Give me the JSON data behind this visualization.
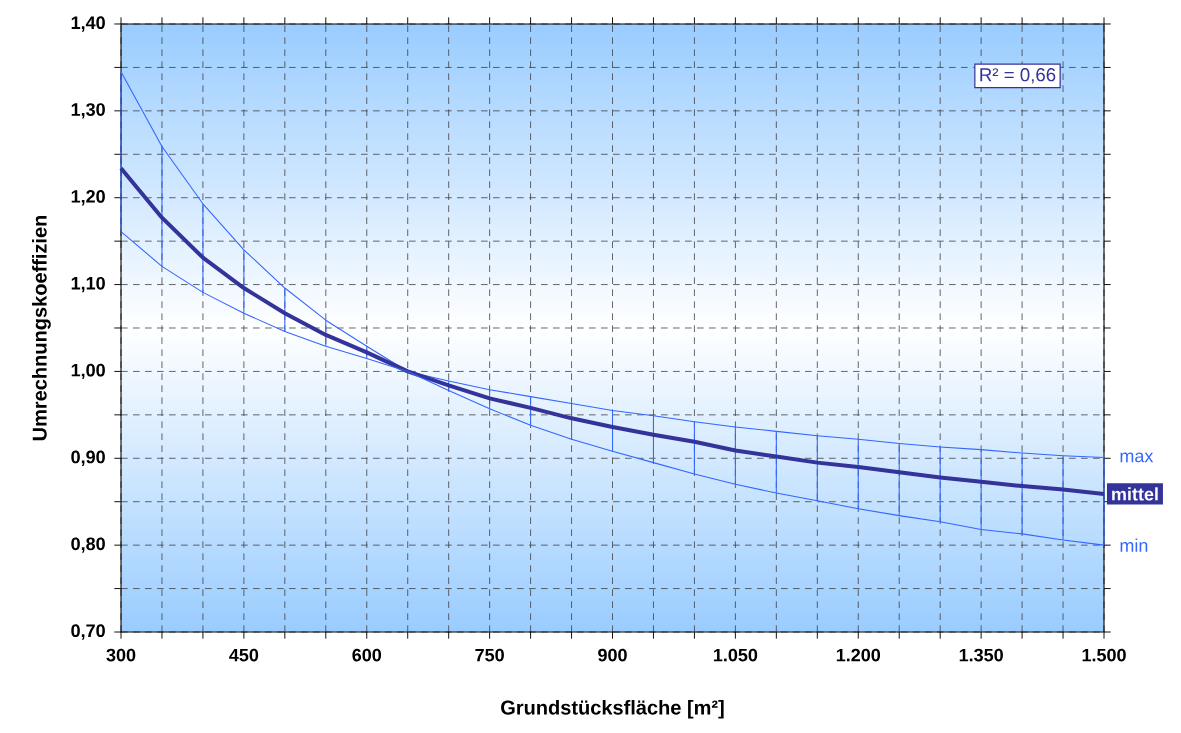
{
  "chart_data": {
    "type": "line",
    "xlabel": "Grundstücksfläche [m²]",
    "ylabel": "Umrechnungskoeffizien",
    "x": [
      300,
      350,
      400,
      450,
      500,
      550,
      600,
      650,
      700,
      750,
      800,
      850,
      900,
      950,
      1000,
      1050,
      1100,
      1150,
      1200,
      1250,
      1300,
      1350,
      1400,
      1450,
      1500
    ],
    "series": [
      {
        "name": "max",
        "color": "#3366ff",
        "values": [
          1.345,
          1.259,
          1.193,
          1.14,
          1.096,
          1.059,
          1.029,
          1.0,
          0.989,
          0.979,
          0.971,
          0.963,
          0.955,
          0.949,
          0.942,
          0.936,
          0.931,
          0.926,
          0.922,
          0.917,
          0.913,
          0.91,
          0.906,
          0.903,
          0.901
        ]
      },
      {
        "name": "mittel",
        "color": "#333399",
        "values": [
          1.234,
          1.177,
          1.131,
          1.096,
          1.067,
          1.042,
          1.022,
          1.0,
          0.984,
          0.969,
          0.958,
          0.946,
          0.936,
          0.927,
          0.919,
          0.909,
          0.902,
          0.895,
          0.89,
          0.884,
          0.878,
          0.873,
          0.868,
          0.864,
          0.859
        ],
        "errors": [
          [
            1.161,
            1.345
          ],
          [
            1.121,
            1.259
          ],
          [
            1.091,
            1.193
          ],
          [
            1.067,
            1.14
          ],
          [
            1.046,
            1.096
          ],
          [
            1.029,
            1.059
          ],
          [
            1.015,
            1.029
          ],
          null,
          [
            0.978,
            0.989
          ],
          [
            0.957,
            0.979
          ],
          [
            0.938,
            0.971
          ],
          [
            0.922,
            0.963
          ],
          [
            0.908,
            0.955
          ],
          [
            0.895,
            0.949
          ],
          [
            0.882,
            0.942
          ],
          [
            0.87,
            0.936
          ],
          [
            0.86,
            0.931
          ],
          [
            0.851,
            0.926
          ],
          [
            0.842,
            0.922
          ],
          [
            0.834,
            0.917
          ],
          [
            0.827,
            0.913
          ],
          [
            0.818,
            0.91
          ],
          [
            0.813,
            0.906
          ],
          [
            0.806,
            0.903
          ],
          [
            0.8,
            0.901
          ]
        ]
      },
      {
        "name": "min",
        "color": "#3366ff",
        "values": [
          1.161,
          1.121,
          1.091,
          1.067,
          1.046,
          1.029,
          1.015,
          1.0,
          0.978,
          0.957,
          0.938,
          0.922,
          0.908,
          0.895,
          0.882,
          0.87,
          0.86,
          0.851,
          0.842,
          0.834,
          0.827,
          0.818,
          0.813,
          0.806,
          0.8
        ]
      }
    ],
    "xlim": [
      300,
      1500
    ],
    "xticks": [
      300,
      {
        "value": 350,
        "label": null
      },
      {
        "value": 400,
        "label": null
      },
      450,
      {
        "value": 500,
        "label": null
      },
      {
        "value": 550,
        "label": null
      },
      600,
      {
        "value": 650,
        "label": null
      },
      {
        "value": 700,
        "label": null
      },
      750,
      {
        "value": 800,
        "label": null
      },
      {
        "value": 850,
        "label": null
      },
      900,
      {
        "value": 950,
        "label": null
      },
      {
        "value": 1000,
        "label": null
      },
      {
        "value": 1050,
        "label": "1.050"
      },
      {
        "value": 1100,
        "label": null
      },
      {
        "value": 1150,
        "label": null
      },
      {
        "value": 1200,
        "label": "1.200"
      },
      {
        "value": 1250,
        "label": null
      },
      {
        "value": 1300,
        "label": null
      },
      {
        "value": 1350,
        "label": "1.350"
      },
      {
        "value": 1400,
        "label": null
      },
      {
        "value": 1450,
        "label": null
      },
      {
        "value": 1500,
        "label": "1.500"
      }
    ],
    "ylim": [
      0.7,
      1.4
    ],
    "yticks": [
      {
        "value": 0.7,
        "label": "0,70"
      },
      {
        "value": 0.75,
        "label": null
      },
      {
        "value": 0.8,
        "label": "0,80"
      },
      {
        "value": 0.85,
        "label": null
      },
      {
        "value": 0.9,
        "label": "0,90"
      },
      {
        "value": 0.95,
        "label": null
      },
      {
        "value": 1.0,
        "label": "1,00"
      },
      {
        "value": 1.05,
        "label": null
      },
      {
        "value": 1.1,
        "label": "1,10"
      },
      {
        "value": 1.15,
        "label": null
      },
      {
        "value": 1.2,
        "label": "1,20"
      },
      {
        "value": 1.25,
        "label": null
      },
      {
        "value": 1.3,
        "label": "1,30"
      },
      {
        "value": 1.35,
        "label": null
      },
      {
        "value": 1.4,
        "label": "1,40"
      }
    ],
    "grid": true,
    "annotations": [
      "R² = 0,66"
    ]
  }
}
